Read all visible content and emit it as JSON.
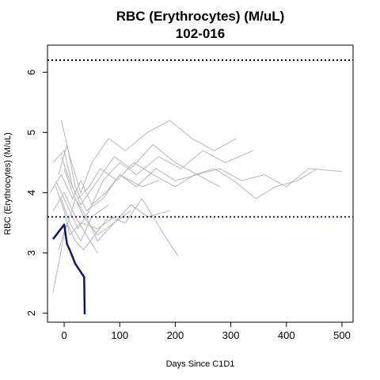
{
  "chart_data": {
    "type": "line",
    "title": "RBC (Erythrocytes) (M/uL)",
    "subtitle": "102-016",
    "xlabel": "Days Since C1D1",
    "ylabel": "RBC (Erythrocytes) (M/uL)",
    "xlim": [
      -30,
      520
    ],
    "ylim": [
      1.85,
      6.45
    ],
    "x_ticks": [
      0,
      100,
      200,
      300,
      400,
      500
    ],
    "y_ticks": [
      2,
      3,
      4,
      5,
      6
    ],
    "grid": false,
    "reference_lines": [
      {
        "y": 6.2,
        "style": "dotted",
        "color": "#000000"
      },
      {
        "y": 3.6,
        "style": "dotted",
        "color": "#1a237e"
      }
    ],
    "highlight_series": {
      "color": "#0d1870",
      "x": [
        -20,
        0,
        5,
        10,
        20,
        36,
        37
      ],
      "y": [
        3.23,
        3.47,
        3.15,
        3.05,
        2.82,
        2.6,
        1.98
      ]
    },
    "background_series_color": "#b8b8b8",
    "background_series": [
      {
        "x": [
          -20,
          0,
          15,
          30,
          60,
          90,
          120,
          160,
          200,
          240,
          280,
          320,
          360,
          400,
          440,
          500
        ],
        "y": [
          4.5,
          4.7,
          4.1,
          3.8,
          4.2,
          4.6,
          4.4,
          4.8,
          4.5,
          4.3,
          4.4,
          4.2,
          4.3,
          4.1,
          4.4,
          4.35
        ]
      },
      {
        "x": [
          -5,
          10,
          30,
          50,
          80,
          110,
          150,
          190,
          230,
          270,
          310
        ],
        "y": [
          5.2,
          4.6,
          4.0,
          4.5,
          4.9,
          4.7,
          5.0,
          5.2,
          4.9,
          4.7,
          4.9
        ]
      },
      {
        "x": [
          -15,
          5,
          25,
          45,
          70,
          100,
          130,
          170,
          210,
          250,
          290,
          340
        ],
        "y": [
          4.2,
          3.8,
          3.4,
          3.7,
          4.2,
          4.5,
          4.3,
          4.6,
          4.4,
          4.7,
          4.5,
          4.7
        ]
      },
      {
        "x": [
          -20,
          0,
          20,
          40,
          60,
          90,
          120,
          150,
          190
        ],
        "y": [
          2.35,
          3.3,
          3.9,
          3.6,
          3.2,
          3.5,
          3.8,
          3.6,
          3.7
        ]
      },
      {
        "x": [
          -10,
          5,
          20,
          35,
          55,
          80,
          110,
          140,
          180,
          205
        ],
        "y": [
          3.05,
          3.5,
          3.2,
          3.05,
          3.3,
          3.6,
          3.5,
          3.9,
          3.3,
          2.95
        ]
      },
      {
        "x": [
          -25,
          -5,
          15,
          30,
          50,
          75,
          100,
          130,
          165,
          200,
          240,
          280
        ],
        "y": [
          4.0,
          4.3,
          3.9,
          4.2,
          3.8,
          4.0,
          4.3,
          4.1,
          4.4,
          4.2,
          4.3,
          4.1
        ]
      },
      {
        "x": [
          -15,
          0,
          10,
          30,
          60,
          90
        ],
        "y": [
          4.1,
          3.7,
          3.3,
          3.5,
          3.4,
          3.6
        ]
      },
      {
        "x": [
          -5,
          10,
          25,
          45,
          65,
          95,
          125,
          160,
          200,
          235,
          270,
          305,
          345,
          380,
          420,
          455
        ],
        "y": [
          4.6,
          4.2,
          3.9,
          4.1,
          4.4,
          4.2,
          4.5,
          4.3,
          4.1,
          4.3,
          4.4,
          4.2,
          3.9,
          4.1,
          4.2,
          4.4
        ]
      },
      {
        "x": [
          -20,
          0,
          20,
          40,
          60
        ],
        "y": [
          3.7,
          4.0,
          3.6,
          3.3,
          3.0
        ]
      },
      {
        "x": [
          -10,
          5,
          20,
          40,
          70,
          100,
          140,
          170
        ],
        "y": [
          4.3,
          4.8,
          4.1,
          3.7,
          3.9,
          4.3,
          4.1,
          4.2
        ]
      },
      {
        "x": [
          -5,
          10,
          30,
          50,
          80
        ],
        "y": [
          3.9,
          3.5,
          3.2,
          3.6,
          3.8
        ]
      },
      {
        "x": [
          0,
          15,
          35,
          60,
          90,
          120
        ],
        "y": [
          4.4,
          4.0,
          3.6,
          3.3,
          3.5,
          3.7
        ]
      }
    ]
  }
}
